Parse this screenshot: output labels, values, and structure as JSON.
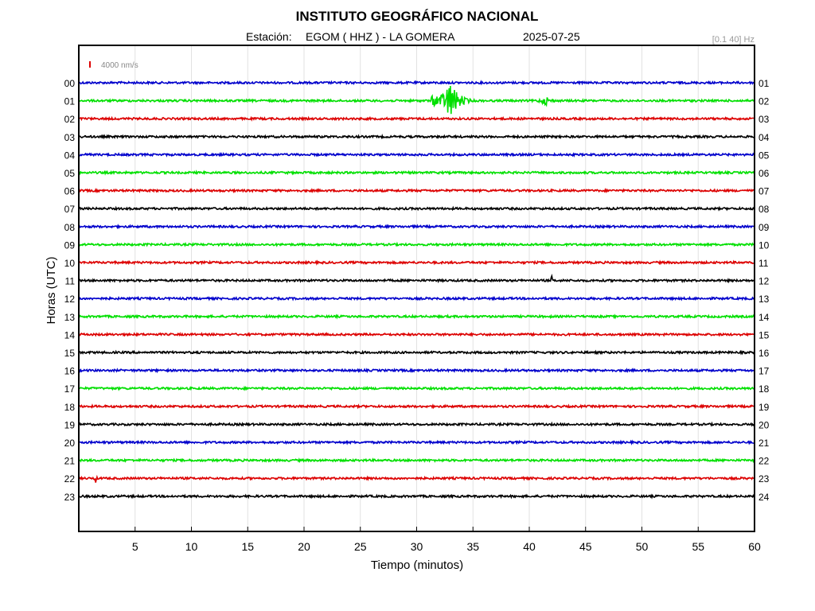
{
  "header": {
    "title": "INSTITUTO GEOGRÁFICO NACIONAL",
    "station_label": "Estación:",
    "station": "EGOM ( HHZ ) - LA GOMERA",
    "date": "2025-07-25",
    "filter": "[0.1 40] Hz",
    "scale_label": "4000 nm/s"
  },
  "chart_data": {
    "type": "line",
    "title": "INSTITUTO GEOGRÁFICO NACIONAL",
    "xlabel": "Tiempo (minutos)",
    "ylabel": "Horas (UTC)",
    "xlim": [
      0,
      60
    ],
    "x_ticks": [
      5,
      10,
      15,
      20,
      25,
      30,
      35,
      40,
      45,
      50,
      55,
      60
    ],
    "grid": true,
    "left_hours": [
      "00",
      "01",
      "02",
      "03",
      "04",
      "05",
      "06",
      "07",
      "08",
      "09",
      "10",
      "11",
      "12",
      "13",
      "14",
      "15",
      "16",
      "17",
      "18",
      "19",
      "20",
      "21",
      "22",
      "23"
    ],
    "right_hours": [
      "01",
      "02",
      "03",
      "04",
      "05",
      "06",
      "07",
      "08",
      "09",
      "10",
      "11",
      "12",
      "13",
      "14",
      "15",
      "16",
      "17",
      "18",
      "19",
      "20",
      "21",
      "22",
      "23",
      "24"
    ],
    "trace_colors": [
      "#0000cc",
      "#00e000",
      "#dd0000",
      "#000000"
    ],
    "events": [
      {
        "hour": "01",
        "start_min": 31.3,
        "peak_min": 33.0,
        "end_min": 36.0,
        "amplitude": "large"
      },
      {
        "hour": "01",
        "start_min": 40.5,
        "peak_min": 41.5,
        "end_min": 43.5,
        "amplitude": "small"
      },
      {
        "hour": "11",
        "start_min": 41.8,
        "peak_min": 42.0,
        "end_min": 42.4,
        "amplitude": "small"
      },
      {
        "hour": "22",
        "start_min": 1.3,
        "peak_min": 1.5,
        "end_min": 1.9,
        "amplitude": "small"
      }
    ]
  }
}
